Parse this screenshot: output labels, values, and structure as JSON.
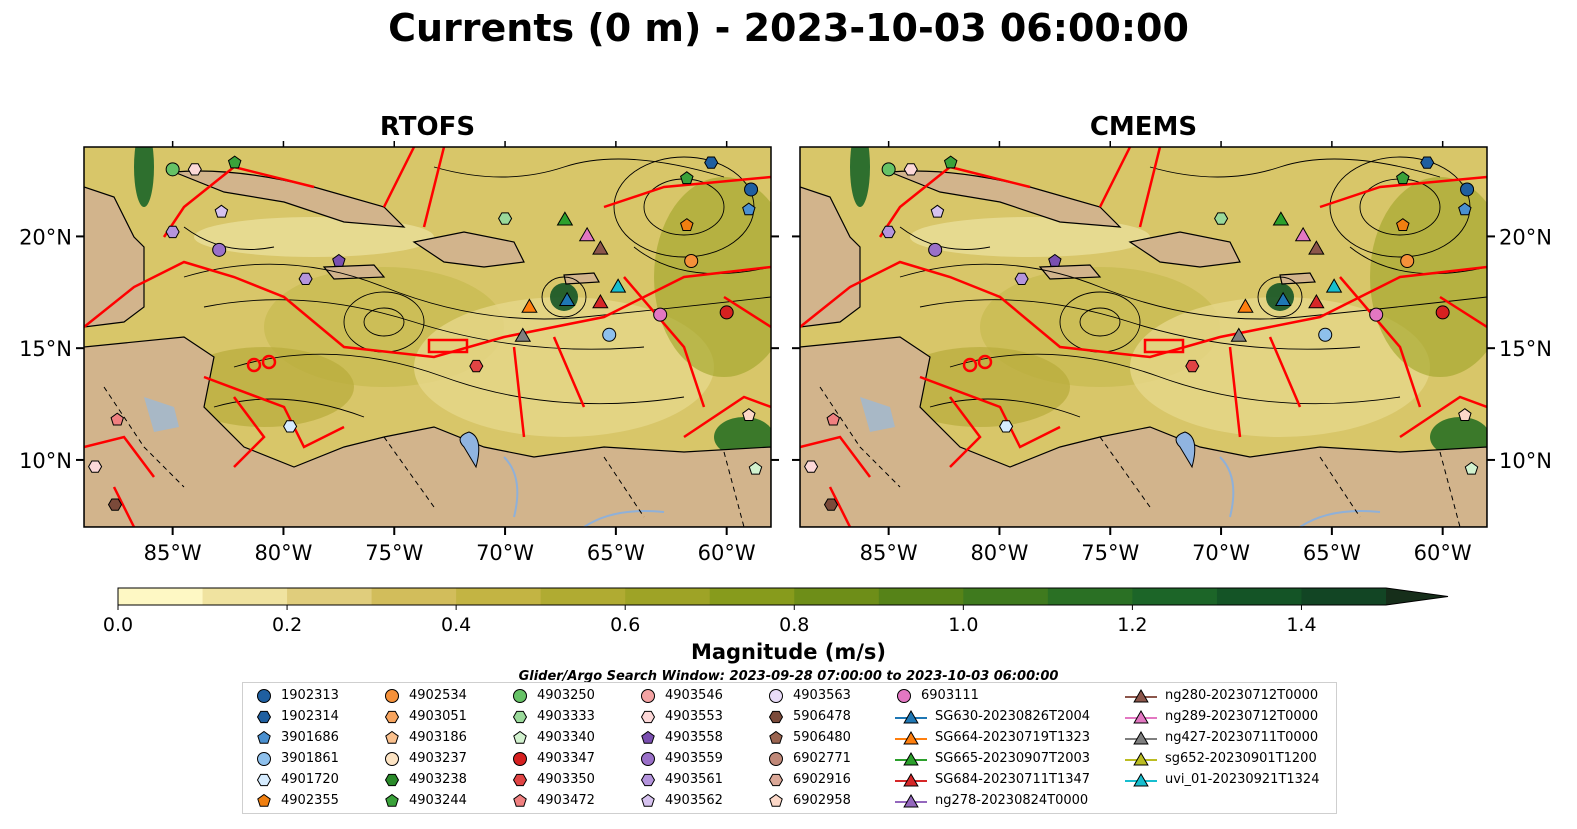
{
  "title": "Currents (0 m) - 2023-10-03 06:00:00",
  "panels": [
    {
      "title": "RTOFS"
    },
    {
      "title": "CMEMS"
    }
  ],
  "map": {
    "lon_ticks": [
      "85°W",
      "80°W",
      "75°W",
      "70°W",
      "65°W",
      "60°W"
    ],
    "lat_ticks": [
      "20°N",
      "15°N",
      "10°N"
    ],
    "lon_range": [
      -89,
      -58
    ],
    "lat_range": [
      7,
      24
    ]
  },
  "colorbar": {
    "label": "Magnitude (m/s)",
    "ticks": [
      "0.0",
      "0.2",
      "0.4",
      "0.6",
      "0.8",
      "1.0",
      "1.2",
      "1.4"
    ],
    "range": [
      0,
      1.5
    ],
    "extend": "max",
    "colors": [
      "#fef8c4",
      "#f0e3a0",
      "#e0cd7c",
      "#d2bd5b",
      "#c3b443",
      "#b0ab32",
      "#9ea326",
      "#879b1c",
      "#6e8e18",
      "#568318",
      "#3f7a1e",
      "#2a7024",
      "#1c6528",
      "#145426",
      "#124524",
      "#13391f",
      "#162e1a"
    ]
  },
  "search_window": "Glider/Argo Search Window: 2023-09-28 07:00:00 to 2023-10-03 06:00:00",
  "legend": [
    {
      "label": "1902313",
      "marker": "circle",
      "color": "#1f5fa0"
    },
    {
      "label": "1902314",
      "marker": "hexagon",
      "color": "#1f5fa0"
    },
    {
      "label": "3901686",
      "marker": "pentagon",
      "color": "#4a90d0"
    },
    {
      "label": "3901861",
      "marker": "circle",
      "color": "#8ec0ec"
    },
    {
      "label": "4901720",
      "marker": "hexagon",
      "color": "#d6ecff"
    },
    {
      "label": "4902355",
      "marker": "pentagon",
      "color": "#f07f10"
    },
    {
      "label": "4902534",
      "marker": "circle",
      "color": "#f5913a"
    },
    {
      "label": "4903051",
      "marker": "hexagon",
      "color": "#f7a45e"
    },
    {
      "label": "4903186",
      "marker": "pentagon",
      "color": "#fbc18e"
    },
    {
      "label": "4903237",
      "marker": "circle",
      "color": "#fde4c4"
    },
    {
      "label": "4903238",
      "marker": "hexagon",
      "color": "#2a8a2a"
    },
    {
      "label": "4903244",
      "marker": "pentagon",
      "color": "#3aa23a"
    },
    {
      "label": "4903250",
      "marker": "circle",
      "color": "#66c266"
    },
    {
      "label": "4903333",
      "marker": "hexagon",
      "color": "#9ad99a"
    },
    {
      "label": "4903340",
      "marker": "pentagon",
      "color": "#d2f2cf"
    },
    {
      "label": "4903347",
      "marker": "circle",
      "color": "#d62020"
    },
    {
      "label": "4903350",
      "marker": "hexagon",
      "color": "#e04444"
    },
    {
      "label": "4903472",
      "marker": "pentagon",
      "color": "#f08080"
    },
    {
      "label": "4903546",
      "marker": "circle",
      "color": "#f4a3a3"
    },
    {
      "label": "4903553",
      "marker": "hexagon",
      "color": "#fcd8d8"
    },
    {
      "label": "4903558",
      "marker": "pentagon",
      "color": "#7a4fb0"
    },
    {
      "label": "4903559",
      "marker": "circle",
      "color": "#9a70c8"
    },
    {
      "label": "4903561",
      "marker": "hexagon",
      "color": "#b494dc"
    },
    {
      "label": "4903562",
      "marker": "pentagon",
      "color": "#d6c2ef"
    },
    {
      "label": "4903563",
      "marker": "circle",
      "color": "#e9dcf8"
    },
    {
      "label": "5906478",
      "marker": "hexagon",
      "color": "#7b4a3a"
    },
    {
      "label": "5906480",
      "marker": "pentagon",
      "color": "#9a6450"
    },
    {
      "label": "6902771",
      "marker": "circle",
      "color": "#c08878"
    },
    {
      "label": "6902916",
      "marker": "hexagon",
      "color": "#dba898"
    },
    {
      "label": "6902958",
      "marker": "pentagon",
      "color": "#fcd8c8"
    },
    {
      "label": "6903111",
      "marker": "circle",
      "color": "#e377c2"
    },
    {
      "label": "SG630-20230826T2004",
      "marker": "triangle-line",
      "color": "#1f77b4"
    },
    {
      "label": "SG664-20230719T1323",
      "marker": "triangle-line",
      "color": "#ff7f0e"
    },
    {
      "label": "SG665-20230907T2003",
      "marker": "triangle-line",
      "color": "#2ca02c"
    },
    {
      "label": "SG684-20230711T1347",
      "marker": "triangle-line",
      "color": "#d62728"
    },
    {
      "label": "ng278-20230824T0000",
      "marker": "triangle-line",
      "color": "#9467bd"
    },
    {
      "label": "ng280-20230712T0000",
      "marker": "triangle-line",
      "color": "#8c564b"
    },
    {
      "label": "ng289-20230712T0000",
      "marker": "triangle-line",
      "color": "#e377c2"
    },
    {
      "label": "ng427-20230711T0000",
      "marker": "triangle-line",
      "color": "#7f7f7f"
    },
    {
      "label": "sg652-20230901T1200",
      "marker": "triangle-line",
      "color": "#bcbd22"
    },
    {
      "label": "uvi_01-20230921T1324",
      "marker": "triangle-line",
      "color": "#17becf"
    }
  ],
  "land_color": "#d2b48c"
}
